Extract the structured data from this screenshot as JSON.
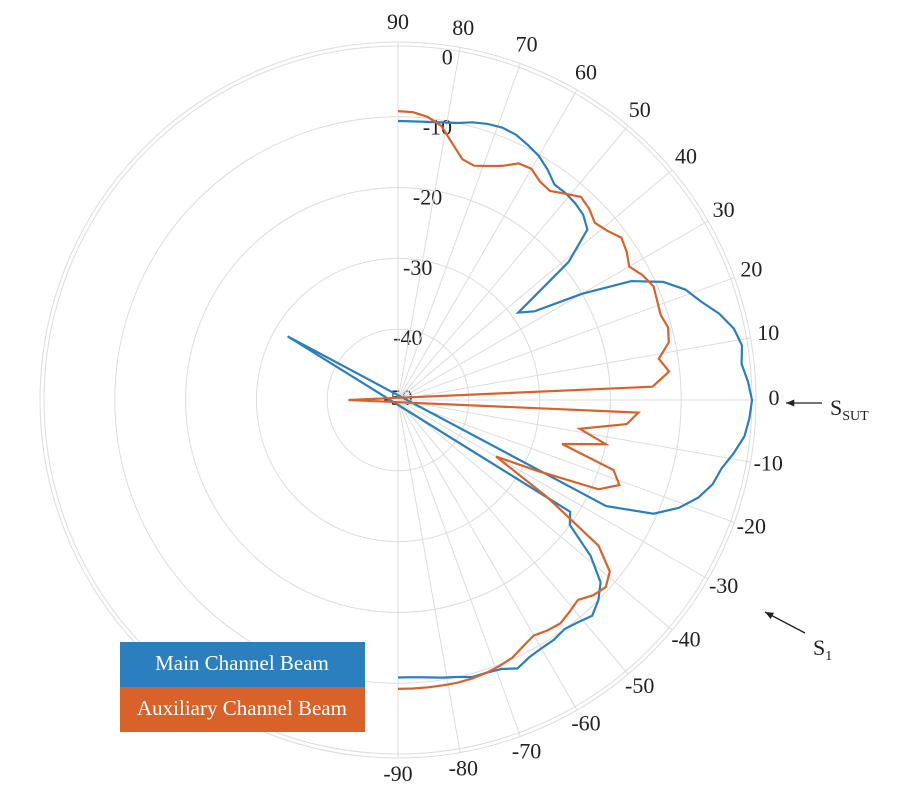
{
  "chart_data": {
    "type": "polar",
    "theta": [
      90,
      87,
      84,
      81,
      78,
      75,
      72,
      69,
      66,
      63,
      60,
      57,
      54,
      51,
      48,
      45,
      42,
      39,
      36,
      33,
      30,
      27,
      24,
      21,
      18,
      15,
      12,
      9,
      6,
      3,
      0,
      -3,
      -6,
      -9,
      -12,
      -15,
      -18,
      -21,
      -24,
      -27,
      -30,
      -33,
      -36,
      -39,
      -42,
      -45,
      -48,
      -51,
      -54,
      -57,
      -60,
      -63,
      -66,
      -69,
      -72,
      -75,
      -78,
      -81,
      -84,
      -87,
      -90
    ],
    "series": [
      {
        "name": "Main Channel Beam",
        "color": "#2b7fbf",
        "values": [
          -10.6,
          -10.6,
          -10.5,
          -10.3,
          -10,
          -9.4,
          -9,
          -8.8,
          -9,
          -9.6,
          -10.2,
          -11.2,
          -12.4,
          -12.4,
          -12.6,
          -13,
          -14,
          -19,
          -29,
          -27,
          -20,
          -13,
          -9,
          -6.5,
          -5,
          -3,
          -1.5,
          -0.8,
          -1.2,
          -0.5,
          0,
          -0.3,
          -0.8,
          -2,
          -3.3,
          -4,
          -5.4,
          -7.5,
          -10.5,
          -17,
          -68,
          -21,
          -20,
          -15,
          -11.5,
          -10,
          -9,
          -9.6,
          -10,
          -9.6,
          -9.5,
          -9.2,
          -8.5,
          -9.3,
          -9.5,
          -9.5,
          -10,
          -10.3,
          -10.6,
          -10.8,
          -10.8
        ]
      },
      {
        "name": "Auxiliary Channel Beam",
        "color": "#d9622b",
        "values": [
          -9.2,
          -9.3,
          -9.8,
          -10.8,
          -13,
          -14.8,
          -15.2,
          -14.6,
          -13.8,
          -12.5,
          -12.3,
          -13.2,
          -13.5,
          -12.5,
          -11.4,
          -11.8,
          -12.6,
          -12,
          -11,
          -11.5,
          -12.3,
          -11.2,
          -10.5,
          -10.8,
          -11,
          -10.5,
          -10.9,
          -12.7,
          -11.5,
          -14,
          -57,
          -16,
          -17.5,
          -24,
          -20,
          -26,
          -18,
          -16.5,
          -19,
          -28,
          -34,
          -25,
          -15,
          -11.5,
          -10.5,
          -11,
          -12,
          -11.5,
          -11,
          -11.2,
          -11.6,
          -11,
          -10.2,
          -9.8,
          -9.5,
          -9.3,
          -9.2,
          -9.2,
          -9.2,
          -9.2,
          -9.2
        ]
      }
    ],
    "rlim": [
      -50,
      0
    ],
    "rticks": [
      -50,
      -40,
      -30,
      -20,
      -10,
      0
    ],
    "thetaticks": [
      90,
      80,
      70,
      60,
      50,
      40,
      30,
      20,
      10,
      0,
      -10,
      -20,
      -30,
      -40,
      -50,
      -60,
      -70,
      -80,
      -90
    ],
    "grid": true,
    "legend": "lower left",
    "annotations": [
      {
        "text": "S",
        "sub": "SUT",
        "theta": 0
      },
      {
        "text": "S",
        "sub": "1",
        "theta": -30
      }
    ]
  }
}
